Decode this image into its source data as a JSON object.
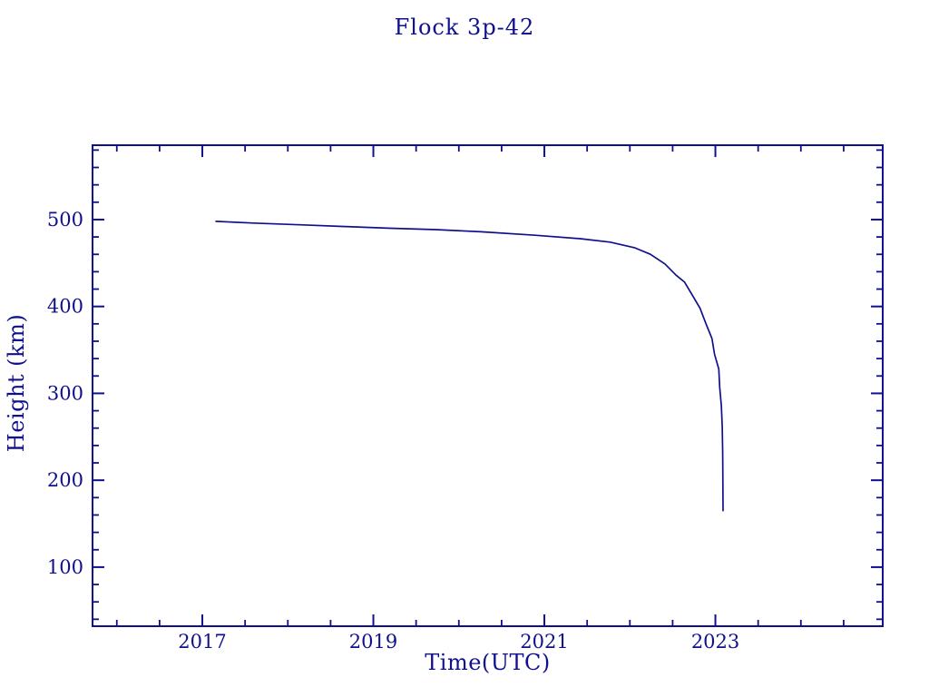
{
  "page": {
    "background_color": "#ffffff",
    "accent_color": "#10108e"
  },
  "chart_data": {
    "type": "line",
    "title": "Flock 3p-42",
    "xlabel": "Time(UTC)",
    "ylabel": "Height (km)",
    "grid": false,
    "legend": "none",
    "line_color": "#10108e",
    "xlim": [
      2015.716,
      2024.957
    ],
    "ylim": [
      32.0,
      585.6
    ],
    "x_major_ticks": [
      2017,
      2019,
      2021,
      2023
    ],
    "x_tick_labels": [
      "2017",
      "2019",
      "2021",
      "2023"
    ],
    "x_minor_step": 0.5,
    "y_major_ticks": [
      100,
      200,
      300,
      400,
      500
    ],
    "y_tick_labels": [
      "100",
      "200",
      "300",
      "400",
      "500"
    ],
    "y_minor_step": 20,
    "tick_style": "inward on all four sides",
    "series": [
      {
        "name": "Flock 3p-42 height",
        "points": [
          [
            2017.16,
            498.0
          ],
          [
            2017.6,
            496.0
          ],
          [
            2018.14,
            494.0
          ],
          [
            2018.67,
            492.0
          ],
          [
            2019.2,
            490.0
          ],
          [
            2019.73,
            488.5
          ],
          [
            2020.26,
            486.0
          ],
          [
            2020.89,
            482.0
          ],
          [
            2021.42,
            478.0
          ],
          [
            2021.77,
            474.0
          ],
          [
            2022.06,
            467.5
          ],
          [
            2022.24,
            460.0
          ],
          [
            2022.41,
            449.0
          ],
          [
            2022.54,
            436.0
          ],
          [
            2022.64,
            428.0
          ],
          [
            2022.73,
            413.0
          ],
          [
            2022.82,
            398.0
          ],
          [
            2022.89,
            380.0
          ],
          [
            2022.96,
            363.0
          ],
          [
            2022.99,
            345.0
          ],
          [
            2023.04,
            328.0
          ],
          [
            2023.05,
            307.0
          ],
          [
            2023.07,
            286.0
          ],
          [
            2023.08,
            262.0
          ],
          [
            2023.085,
            230.0
          ],
          [
            2023.09,
            165.0
          ]
        ]
      }
    ]
  }
}
